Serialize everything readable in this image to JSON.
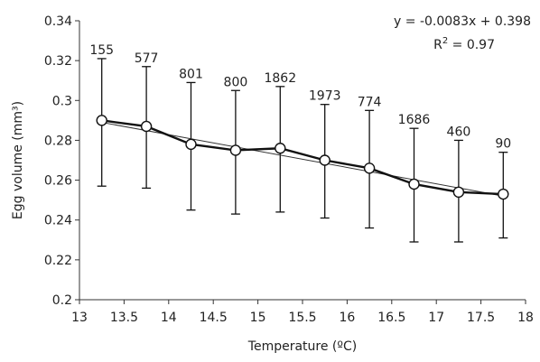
{
  "chart_data": {
    "type": "line",
    "title": "",
    "xlabel": "Temperature (ºC)",
    "ylabel": "Egg volume (mm³)",
    "xlim": [
      13,
      18
    ],
    "ylim": [
      0.2,
      0.34
    ],
    "xticks": [
      13,
      13.5,
      14,
      14.5,
      15,
      15.5,
      16,
      16.5,
      17,
      17.5,
      18
    ],
    "xtick_labels": [
      "13",
      "13.5",
      "14",
      "14.5",
      "15",
      "15.5",
      "16",
      "16.5",
      "17",
      "17.5",
      "18"
    ],
    "yticks": [
      0.2,
      0.22,
      0.24,
      0.26,
      0.28,
      0.3,
      0.32,
      0.34
    ],
    "ytick_labels": [
      "0.2",
      "0.22",
      "0.24",
      "0.26",
      "0.28",
      "0.3",
      "0.32",
      "0.34"
    ],
    "grid": false,
    "series": [
      {
        "marker": "open-circle",
        "color": "#111111",
        "x": [
          13.25,
          13.75,
          14.25,
          14.75,
          15.25,
          15.75,
          16.25,
          16.75,
          17.25,
          17.75
        ],
        "y": [
          0.29,
          0.287,
          0.278,
          0.275,
          0.276,
          0.27,
          0.266,
          0.258,
          0.254,
          0.253
        ],
        "error_upper": [
          0.321,
          0.317,
          0.309,
          0.305,
          0.307,
          0.298,
          0.295,
          0.286,
          0.28,
          0.274
        ],
        "error_lower": [
          0.257,
          0.256,
          0.245,
          0.243,
          0.244,
          0.241,
          0.236,
          0.229,
          0.229,
          0.231
        ],
        "n_labels": [
          "155",
          "577",
          "801",
          "800",
          "1862",
          "1973",
          "774",
          "1686",
          "460",
          "90"
        ]
      }
    ],
    "trendline": {
      "type": "linear",
      "x_start": 13.25,
      "x_end": 17.75,
      "y_start": 0.289,
      "y_end": 0.252,
      "equation": "y = -0.0083x + 0.398",
      "r2_prefix": "R",
      "r2_exp": "2",
      "r2_value": " = 0.97"
    }
  }
}
